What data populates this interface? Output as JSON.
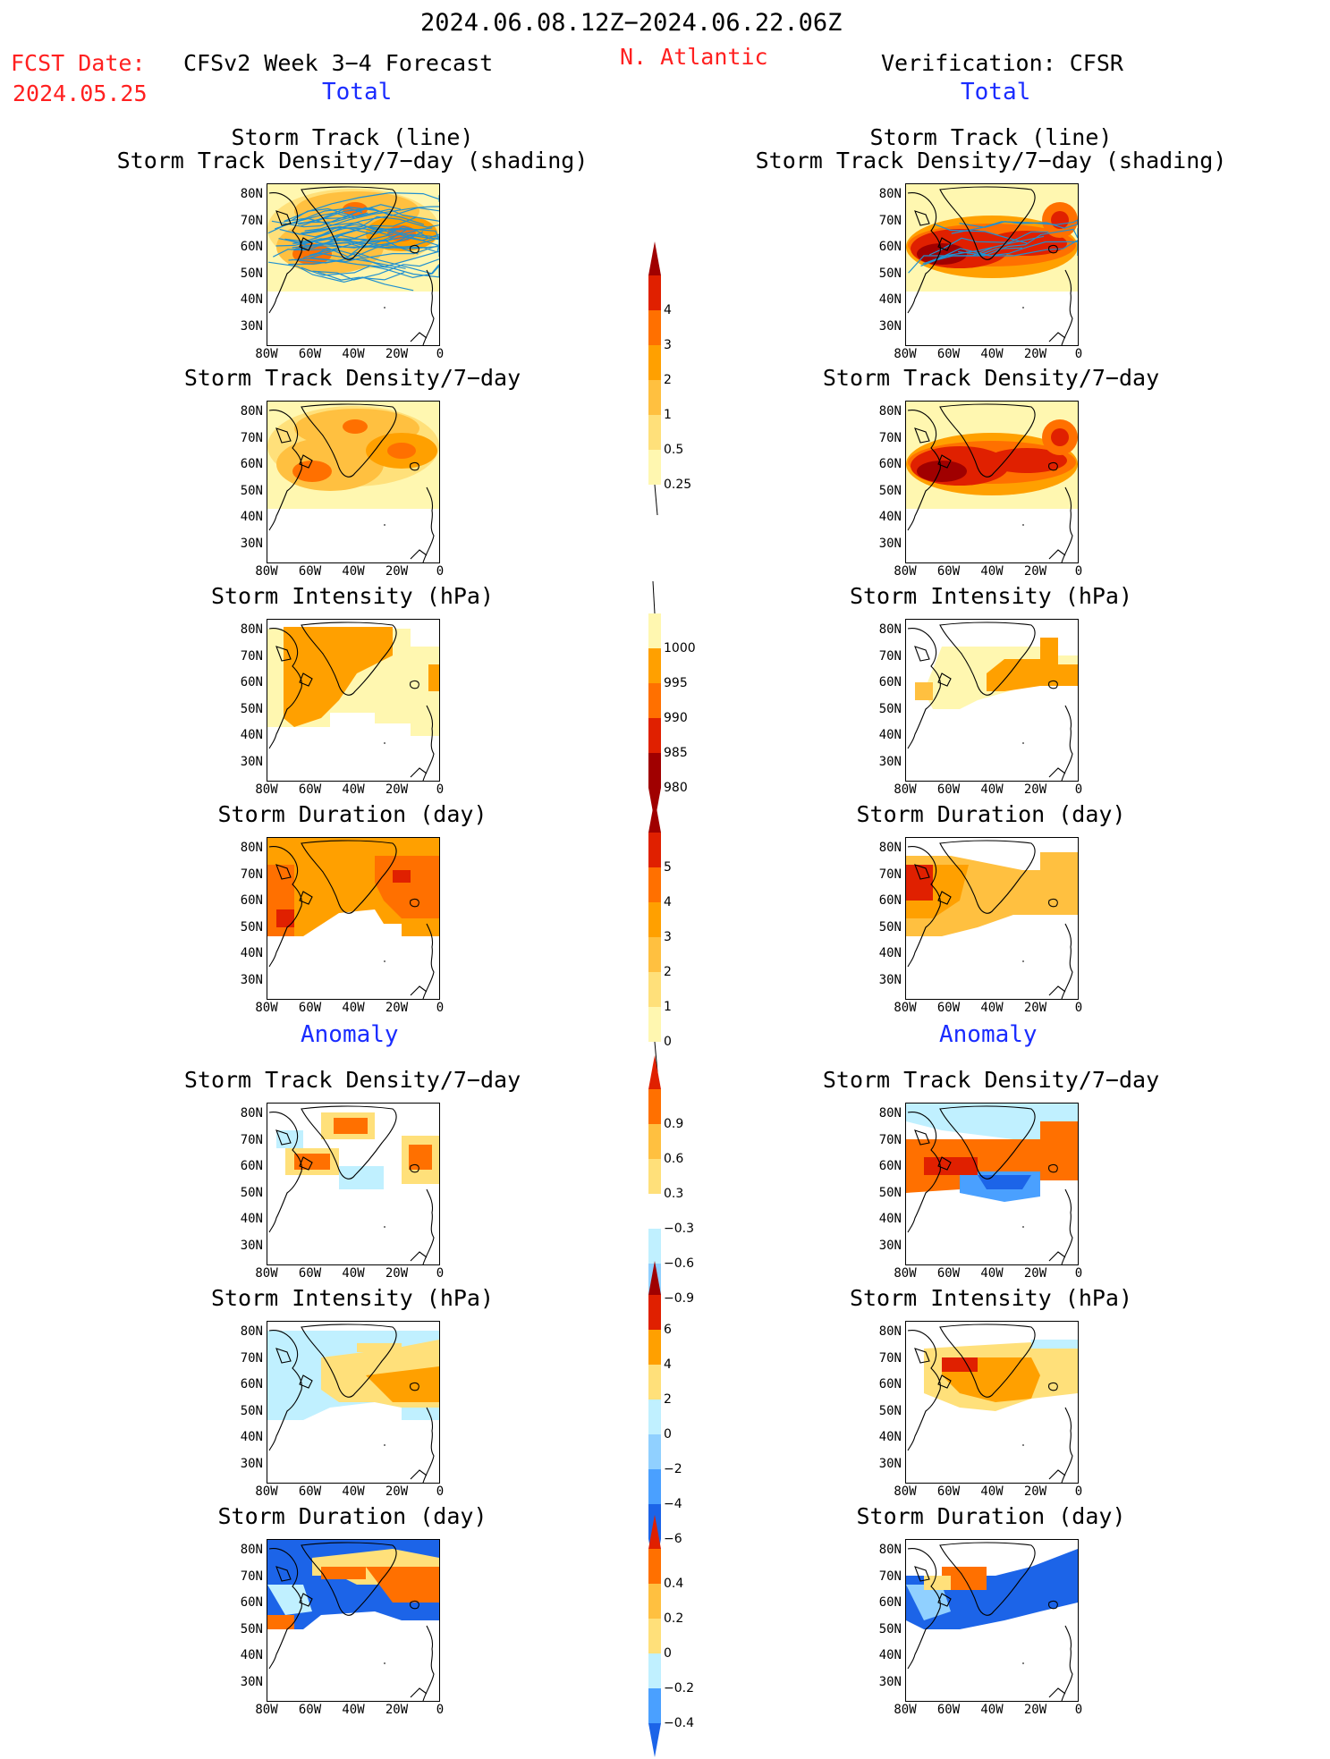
{
  "header": {
    "date_range": "2024.06.08.12Z−2024.06.22.06Z",
    "fcst_label": "FCST Date:",
    "fcst_date": "2024.05.25",
    "model_title": "CFSv2 Week 3−4 Forecast",
    "region": "N. Atlantic",
    "verification": "Verification: CFSR"
  },
  "section_labels": {
    "total": "Total",
    "anomaly": "Anomaly"
  },
  "panel_titles": {
    "track_line": "Storm Track (line)",
    "track_shading": "Storm Track Density/7−day (shading)",
    "density": "Storm Track Density/7−day",
    "intensity": "Storm Intensity (hPa)",
    "duration": "Storm Duration (day)"
  },
  "axes": {
    "lat_ticks": [
      "80N",
      "70N",
      "60N",
      "50N",
      "40N",
      "30N"
    ],
    "lon_ticks": [
      "80W",
      "60W",
      "40W",
      "20W",
      "0"
    ]
  },
  "colorbars": {
    "track_density_total": [
      "4",
      "3",
      "2",
      "1",
      "0.5",
      "0.25"
    ],
    "intensity_total": [
      "1000",
      "995",
      "990",
      "985",
      "980"
    ],
    "duration_total": [
      "5",
      "4",
      "3",
      "2",
      "1",
      "0"
    ],
    "track_density_anom": [
      "0.9",
      "0.6",
      "0.3",
      "−0.3",
      "−0.6",
      "−0.9"
    ],
    "intensity_anom": [
      "6",
      "4",
      "2",
      "0",
      "−2",
      "−4",
      "−6"
    ],
    "duration_anom": [
      "0.4",
      "0.2",
      "0",
      "−0.2",
      "−0.4"
    ]
  },
  "colors": {
    "warm": [
      "#fff7b0",
      "#ffe07a",
      "#ffc040",
      "#ffa000",
      "#ff7000",
      "#e02000",
      "#a00000"
    ],
    "cool": [
      "#c0f0ff",
      "#90d0ff",
      "#4aa0ff",
      "#1c64e8"
    ],
    "track_line": "#2090d0"
  }
}
